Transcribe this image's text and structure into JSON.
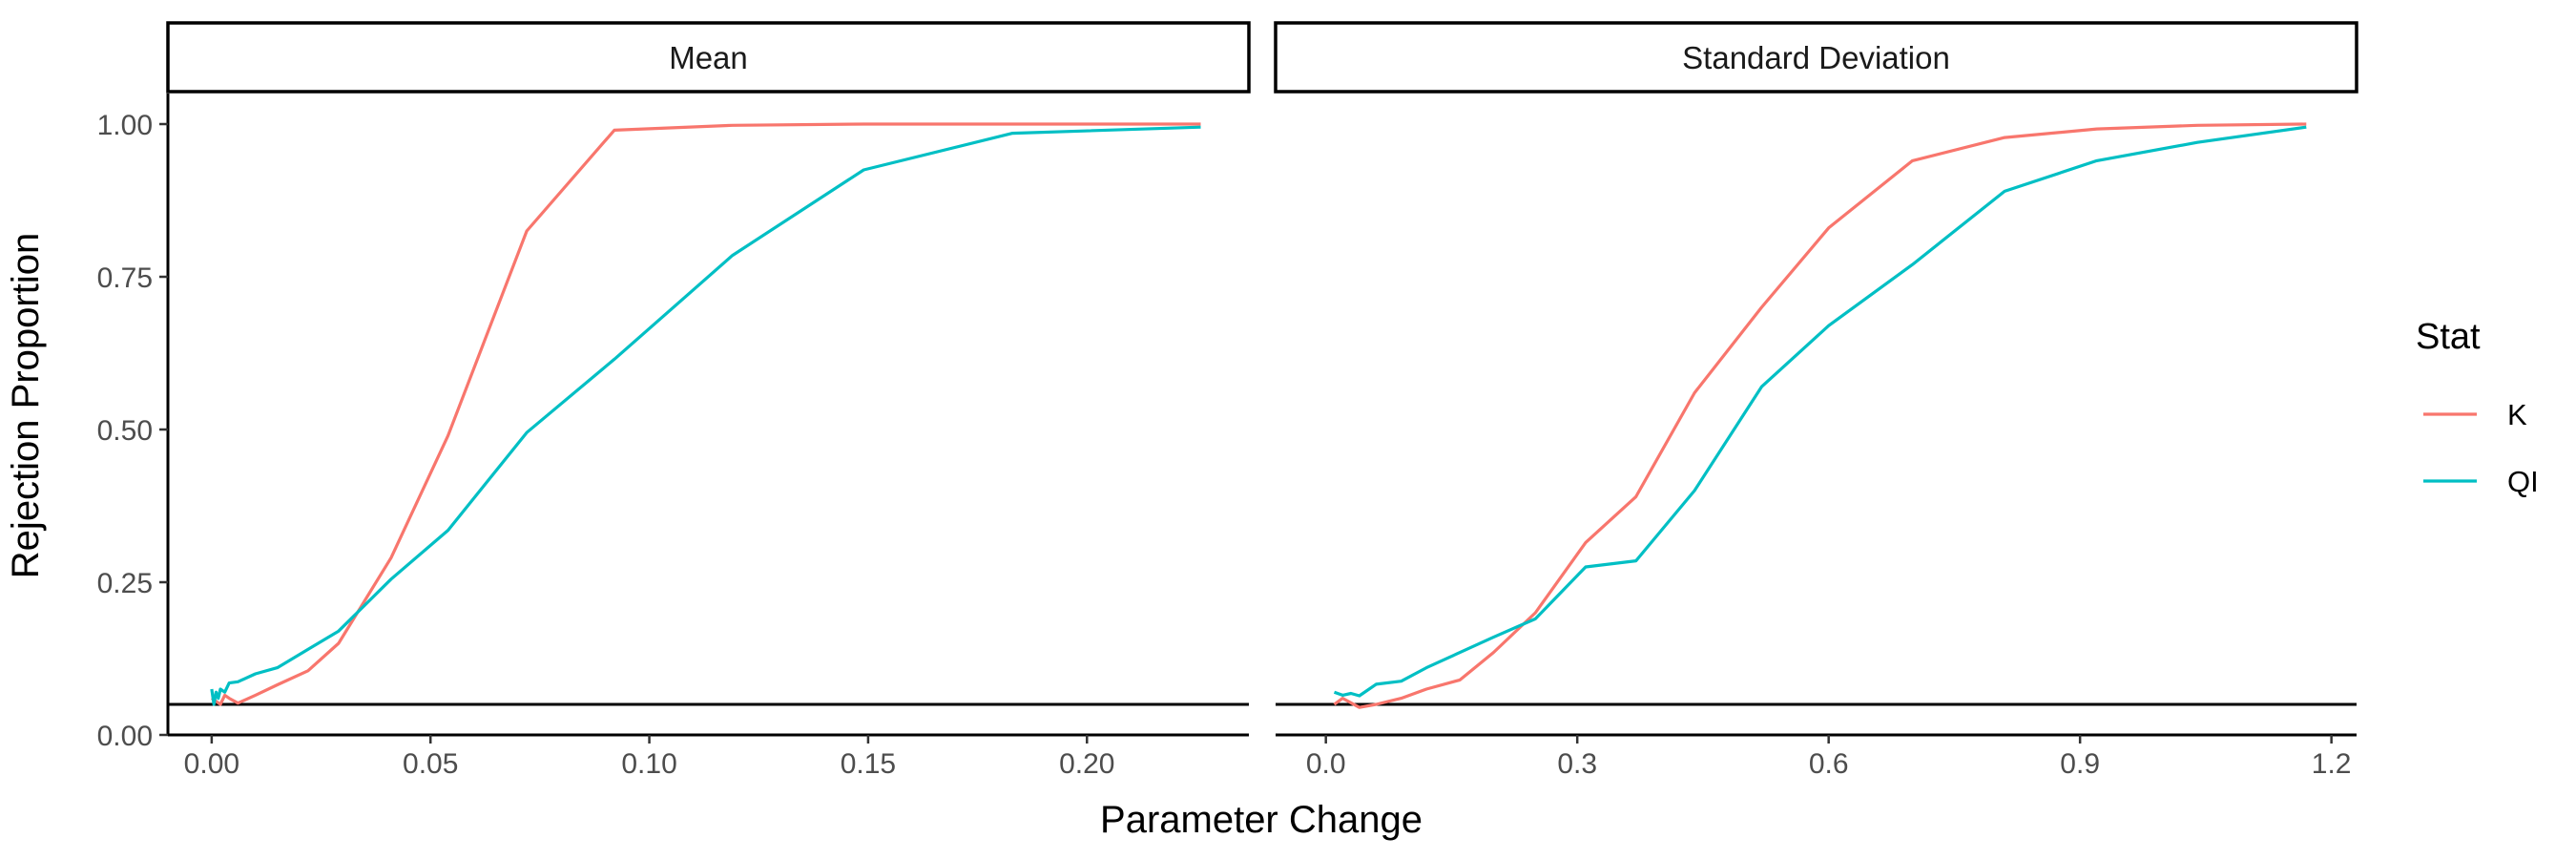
{
  "chart_data": {
    "type": "line",
    "ylabel": "Rejection Proportion",
    "xlabel": "Parameter Change",
    "ylim": [
      0,
      1.05
    ],
    "y_ticks": [
      0,
      0.25,
      0.5,
      0.75,
      1.0
    ],
    "y_tick_labels": [
      "0.00",
      "0.25",
      "0.50",
      "0.75",
      "1.00"
    ],
    "grid": false,
    "reference_line_y": 0.05,
    "legend": {
      "title": "Stat",
      "position": "right",
      "entries": [
        {
          "name": "K",
          "color": "#F8766D"
        },
        {
          "name": "QI",
          "color": "#00BFC4"
        }
      ]
    },
    "panels": [
      {
        "strip_label": "Mean",
        "xlim": [
          -0.01,
          0.237
        ],
        "x_ticks": [
          0,
          0.05,
          0.1,
          0.15,
          0.2
        ],
        "x_tick_labels": [
          "0.00",
          "0.05",
          "0.10",
          "0.15",
          "0.20"
        ],
        "series": [
          {
            "name": "K",
            "color": "#F8766D",
            "x": [
              0,
              0.001,
              0.002,
              0.003,
              0.004,
              0.006,
              0.01,
              0.015,
              0.022,
              0.029,
              0.041,
              0.054,
              0.072,
              0.092,
              0.119,
              0.149,
              0.183,
              0.226
            ],
            "y": [
              0.06,
              0.055,
              0.05,
              0.065,
              0.06,
              0.052,
              0.065,
              0.082,
              0.105,
              0.15,
              0.29,
              0.49,
              0.825,
              0.99,
              0.998,
              1.0,
              1.0,
              1.0
            ]
          },
          {
            "name": "QI",
            "color": "#00BFC4",
            "x": [
              0,
              0.0005,
              0.001,
              0.0015,
              0.002,
              0.003,
              0.004,
              0.006,
              0.01,
              0.015,
              0.022,
              0.029,
              0.041,
              0.054,
              0.072,
              0.092,
              0.119,
              0.149,
              0.183,
              0.226
            ],
            "y": [
              0.075,
              0.05,
              0.07,
              0.06,
              0.075,
              0.07,
              0.085,
              0.087,
              0.1,
              0.11,
              0.14,
              0.17,
              0.255,
              0.335,
              0.495,
              0.615,
              0.785,
              0.925,
              0.985,
              0.995
            ]
          }
        ]
      },
      {
        "strip_label": "Standard Deviation",
        "xlim": [
          -0.06,
          1.23
        ],
        "x_ticks": [
          0,
          0.3,
          0.6,
          0.9,
          1.2
        ],
        "x_tick_labels": [
          "0.0",
          "0.3",
          "0.6",
          "0.9",
          "1.2"
        ],
        "series": [
          {
            "name": "K",
            "color": "#F8766D",
            "x": [
              0.01,
              0.02,
              0.04,
              0.06,
              0.09,
              0.12,
              0.16,
              0.2,
              0.25,
              0.31,
              0.37,
              0.44,
              0.52,
              0.6,
              0.7,
              0.81,
              0.92,
              1.04,
              1.17
            ],
            "y": [
              0.05,
              0.06,
              0.045,
              0.05,
              0.06,
              0.075,
              0.09,
              0.135,
              0.2,
              0.315,
              0.39,
              0.56,
              0.7,
              0.83,
              0.94,
              0.978,
              0.992,
              0.998,
              1.0
            ]
          },
          {
            "name": "QI",
            "color": "#00BFC4",
            "x": [
              0.01,
              0.02,
              0.03,
              0.04,
              0.06,
              0.09,
              0.12,
              0.16,
              0.2,
              0.25,
              0.31,
              0.37,
              0.44,
              0.52,
              0.6,
              0.7,
              0.81,
              0.92,
              1.04,
              1.17
            ],
            "y": [
              0.07,
              0.065,
              0.068,
              0.064,
              0.083,
              0.088,
              0.11,
              0.135,
              0.16,
              0.19,
              0.275,
              0.285,
              0.4,
              0.57,
              0.67,
              0.77,
              0.89,
              0.94,
              0.97,
              0.995
            ]
          }
        ]
      }
    ]
  }
}
